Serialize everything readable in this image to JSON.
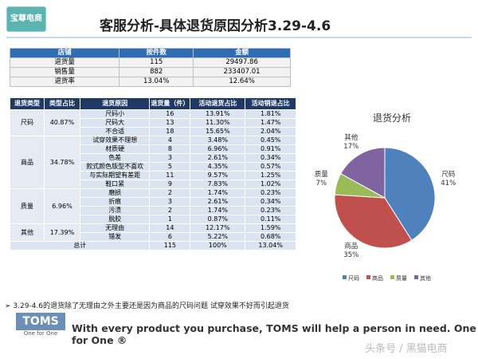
{
  "header": {
    "logo": "宝尊电商",
    "title": "客服分析-具体退货原因分析3.29-4.6"
  },
  "summary_table": {
    "header": [
      "店铺",
      "按件数",
      "金额"
    ],
    "rows": [
      [
        "退货量",
        "115",
        "29497.86"
      ],
      [
        "销售量",
        "882",
        "233407.01"
      ],
      [
        "退货率",
        "13.04%",
        "12.64%"
      ]
    ]
  },
  "detail_table": {
    "header": [
      "退货类型",
      "类型占比",
      "退货原因",
      "退货量（件）",
      "活动退货占比",
      "活动销退占比"
    ],
    "groups": [
      {
        "type": "尺码",
        "share": "40.87%",
        "rows": [
          [
            "尺码小",
            "16",
            "13.91%",
            "1.81%"
          ],
          [
            "尺码大",
            "13",
            "11.30%",
            "1.47%"
          ],
          [
            "不合适",
            "18",
            "15.65%",
            "2.04%"
          ]
        ]
      },
      {
        "type": "商品",
        "share": "34.78%",
        "rows": [
          [
            "试穿效果不理想",
            "4",
            "3.48%",
            "0.45%"
          ],
          [
            "材质硬",
            "8",
            "6.96%",
            "0.91%"
          ],
          [
            "色差",
            "3",
            "2.61%",
            "0.34%"
          ],
          [
            "款式颜色版型不喜欢",
            "5",
            "4.35%",
            "0.57%"
          ],
          [
            "与实际期望有差距",
            "11",
            "9.57%",
            "1.25%"
          ],
          [
            "鞋口紧",
            "9",
            "7.83%",
            "1.02%"
          ]
        ]
      },
      {
        "type": "质量",
        "share": "6.96%",
        "rows": [
          [
            "磨损",
            "2",
            "1.74%",
            "0.23%"
          ],
          [
            "折痕",
            "3",
            "2.61%",
            "0.34%"
          ],
          [
            "污渍",
            "2",
            "1.74%",
            "0.23%"
          ],
          [
            "脱胶",
            "1",
            "0.87%",
            "0.11%"
          ]
        ]
      },
      {
        "type": "其他",
        "share": "17.39%",
        "rows": [
          [
            "无理由",
            "14",
            "12.17%",
            "1.59%"
          ],
          [
            "错发",
            "6",
            "5.22%",
            "0.68%"
          ]
        ]
      }
    ],
    "total": [
      "总计",
      "115",
      "100%",
      "13.04%"
    ]
  },
  "chart_data": {
    "type": "pie",
    "title": "退货分析",
    "categories": [
      "尺码",
      "商品",
      "质量",
      "其他"
    ],
    "values": [
      41,
      35,
      7,
      17
    ],
    "value_labels": [
      "41%",
      "35%",
      "7%",
      "17%"
    ],
    "colors": [
      "#4f81bd",
      "#c0504d",
      "#9bbb59",
      "#8064a2"
    ],
    "legend": "bottom"
  },
  "note": "3.29-4.6的退货除了无理由之外主要还是因为商品的尺码问题 试穿效果不好而引起退货",
  "banner": {
    "logo": "TOMS",
    "logo_sub": "One for One",
    "text": "With every product you purchase, TOMS will help a person in need. One for One ®"
  },
  "watermark": "头条号 / 黑猫电商"
}
